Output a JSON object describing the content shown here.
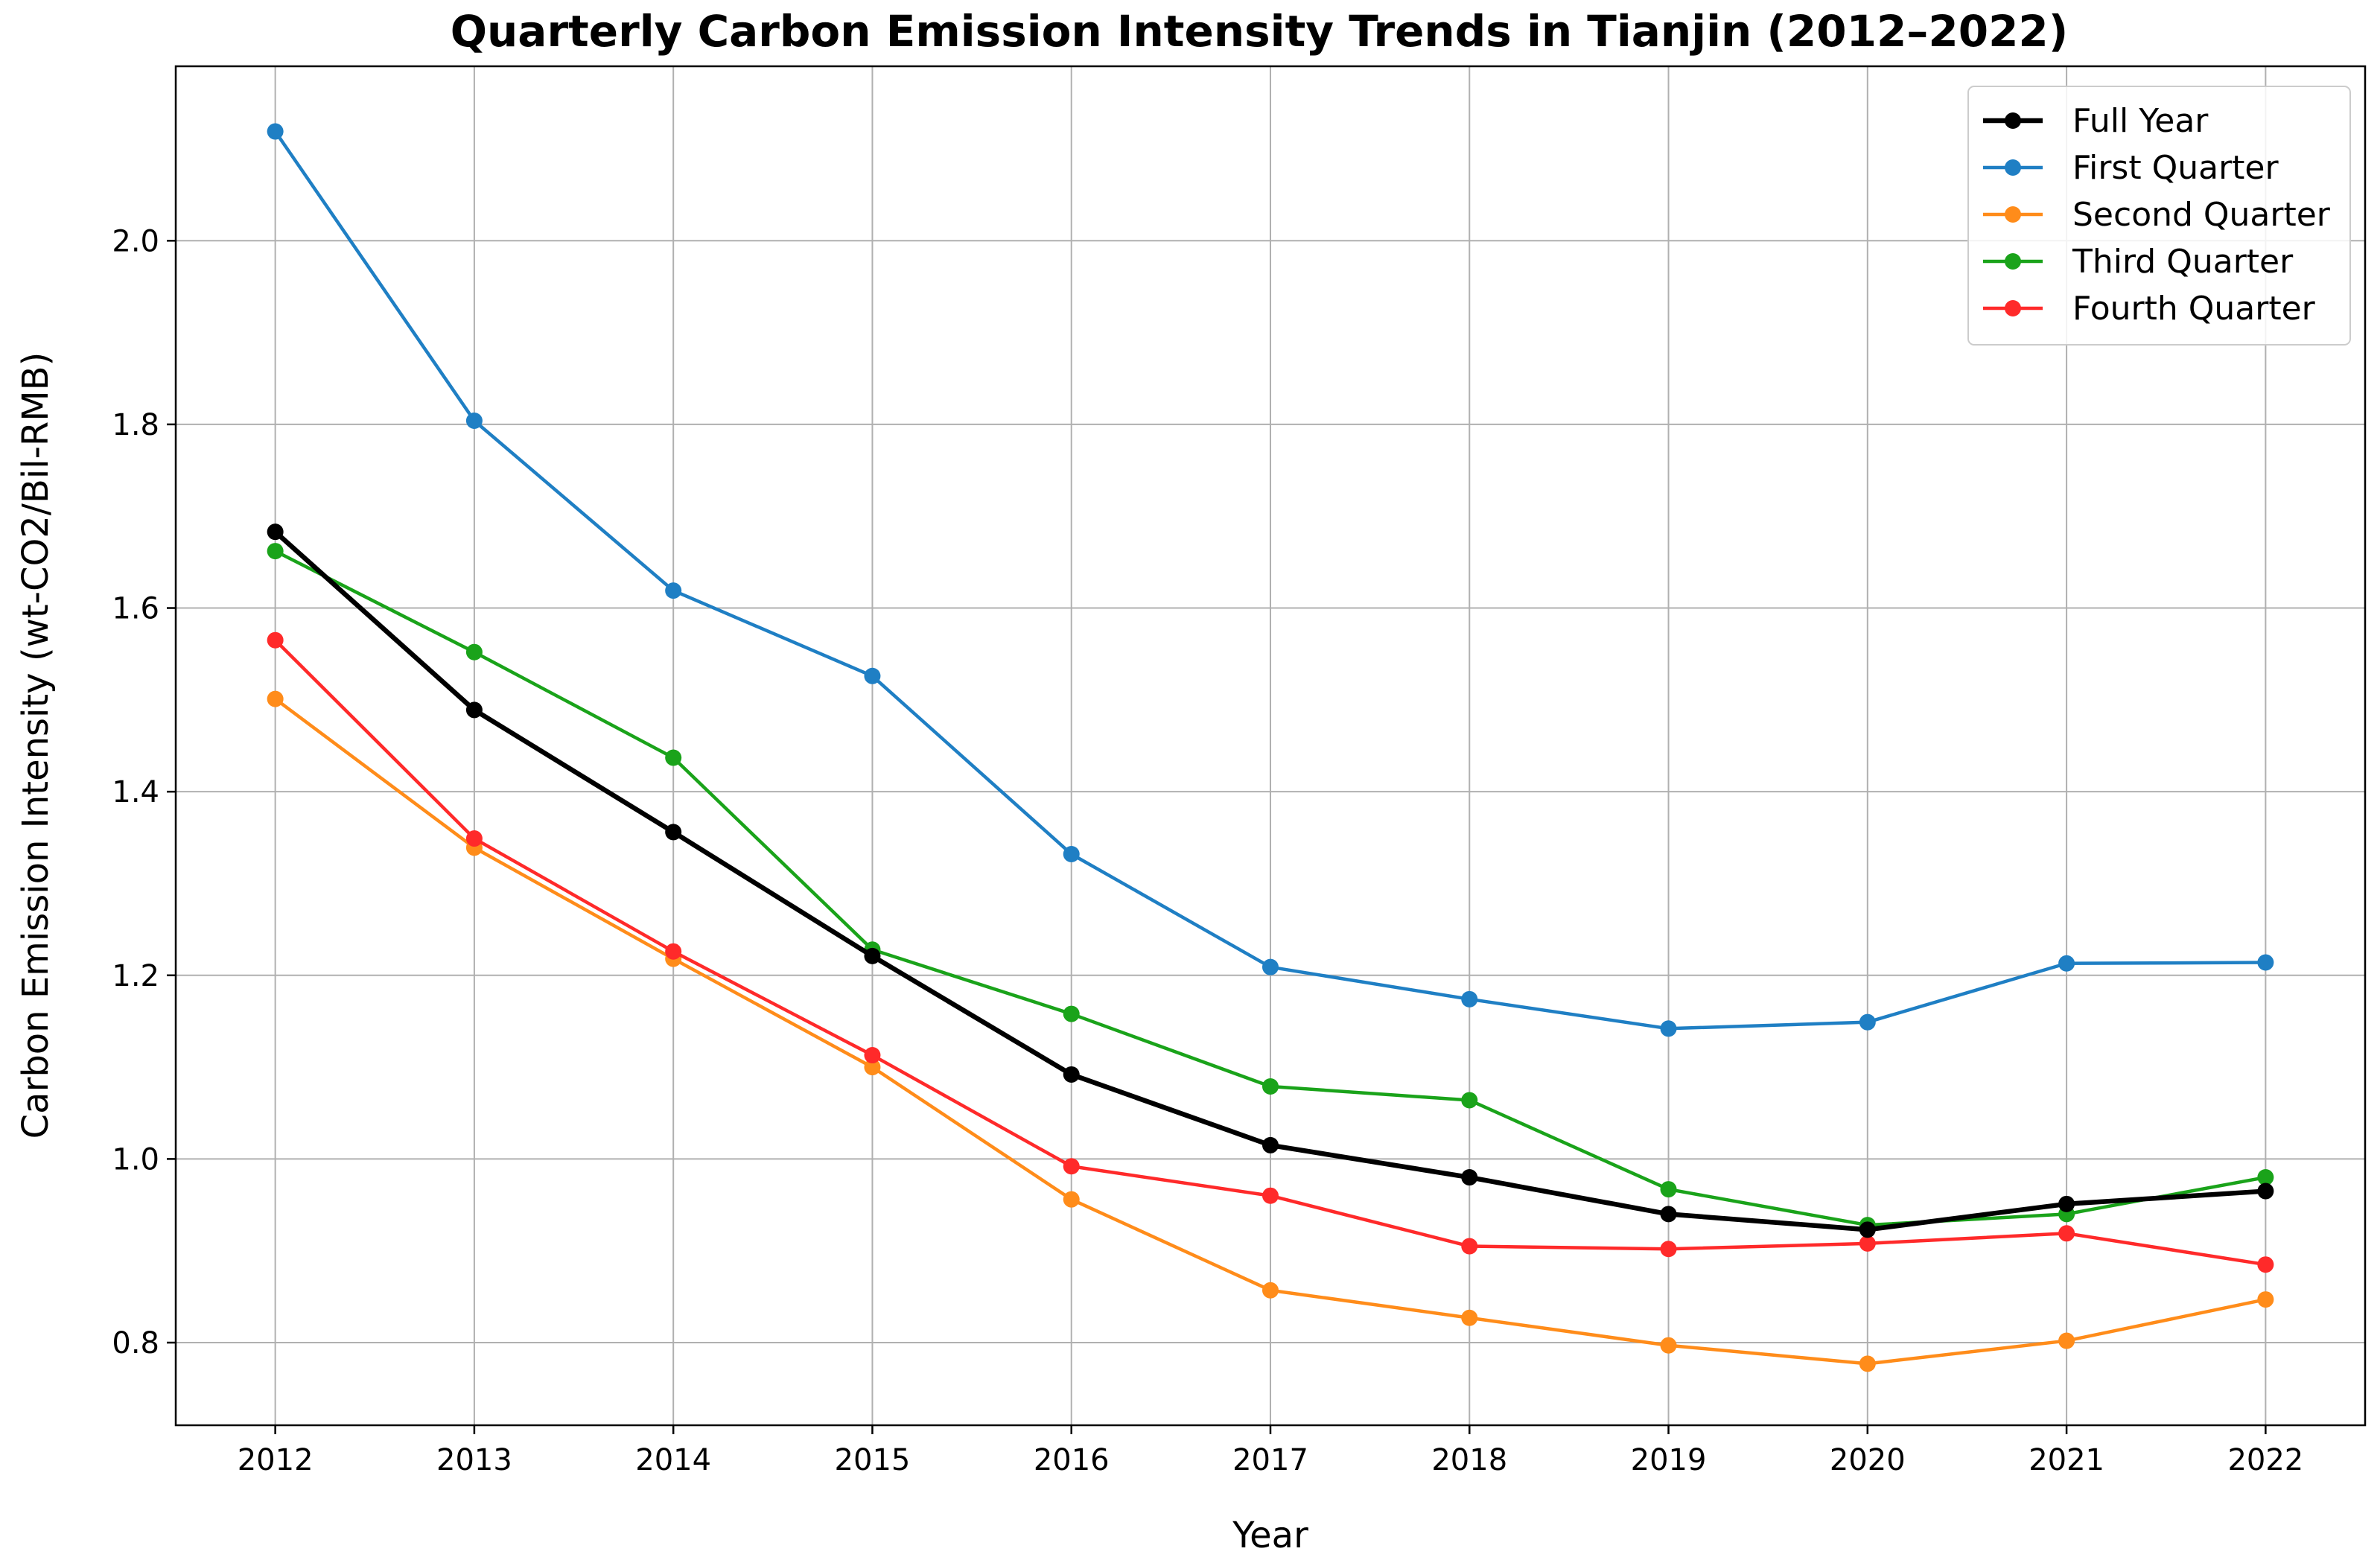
{
  "chart_data": {
    "type": "line",
    "title": "Quarterly Carbon Emission Intensity Trends in Tianjin (2012–2022)",
    "xlabel": "Year",
    "ylabel": "Carbon Emission Intensity (wt-CO2/Bil-RMB)",
    "x": [
      2012,
      2013,
      2014,
      2015,
      2016,
      2017,
      2018,
      2019,
      2020,
      2021,
      2022
    ],
    "xlim": [
      2011.5,
      2022.5
    ],
    "ylim": [
      0.71,
      2.19
    ],
    "yticks": [
      0.8,
      1.0,
      1.2,
      1.4,
      1.6,
      1.8,
      2.0
    ],
    "ytick_labels": [
      "0.8",
      "1.0",
      "1.2",
      "1.4",
      "1.6",
      "1.8",
      "2.0"
    ],
    "grid": true,
    "legend_position": "top-right",
    "series": [
      {
        "name": "Full Year",
        "color": "#000000",
        "bold": true,
        "values": [
          1.683,
          1.489,
          1.356,
          1.221,
          1.092,
          1.015,
          0.98,
          0.94,
          0.923,
          0.951,
          0.965
        ]
      },
      {
        "name": "First Quarter",
        "color": "#1f7fc4",
        "bold": false,
        "values": [
          2.119,
          1.804,
          1.619,
          1.526,
          1.332,
          1.209,
          1.174,
          1.142,
          1.149,
          1.213,
          1.214
        ]
      },
      {
        "name": "Second Quarter",
        "color": "#ff8c1a",
        "bold": false,
        "values": [
          1.501,
          1.339,
          1.218,
          1.1,
          0.956,
          0.857,
          0.827,
          0.797,
          0.777,
          0.802,
          0.847
        ]
      },
      {
        "name": "Third Quarter",
        "color": "#1aa31a",
        "bold": false,
        "values": [
          1.662,
          1.552,
          1.437,
          1.228,
          1.158,
          1.079,
          1.064,
          0.967,
          0.928,
          0.94,
          0.98
        ]
      },
      {
        "name": "Fourth Quarter",
        "color": "#ff2a2a",
        "bold": false,
        "values": [
          1.565,
          1.349,
          1.226,
          1.113,
          0.992,
          0.96,
          0.905,
          0.902,
          0.908,
          0.919,
          0.885
        ]
      }
    ]
  }
}
